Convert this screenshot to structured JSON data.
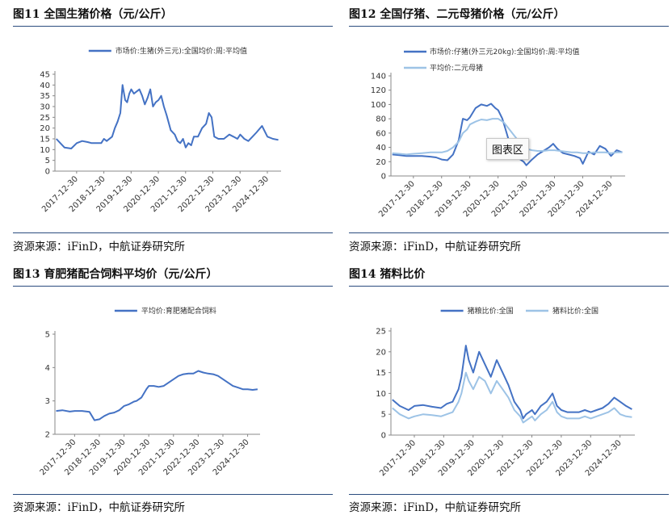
{
  "source_text": "资源来源：iFinD，中航证券研究所",
  "tooltip_text": "图表区",
  "charts": [
    {
      "type": "line",
      "title": "图11  全国生猪价格（元/公斤）",
      "ylim": [
        0,
        45
      ],
      "yticks": [
        0,
        5,
        10,
        15,
        20,
        25,
        30,
        35,
        40,
        45
      ],
      "xticks": [
        "2017-12-30",
        "2018-12-30",
        "2019-12-30",
        "2020-12-30",
        "2021-12-30",
        "2022-12-30",
        "2023-12-30",
        "2024-12-30"
      ],
      "xrange": [
        2017.2,
        2025.5
      ],
      "legend_position": "top-center",
      "series": [
        {
          "name": "市场价:生猪(外三元):全国均价:周:平均值",
          "color": "#4472c4",
          "x": [
            2017.25,
            2017.4,
            2017.55,
            2017.8,
            2018.0,
            2018.2,
            2018.4,
            2018.55,
            2018.7,
            2018.9,
            2019.0,
            2019.1,
            2019.3,
            2019.4,
            2019.5,
            2019.6,
            2019.68,
            2019.78,
            2019.85,
            2019.93,
            2020.0,
            2020.1,
            2020.2,
            2020.3,
            2020.4,
            2020.5,
            2020.6,
            2020.7,
            2020.8,
            2020.9,
            2021.0,
            2021.1,
            2021.2,
            2021.3,
            2021.45,
            2021.6,
            2021.7,
            2021.8,
            2021.9,
            2022.0,
            2022.1,
            2022.2,
            2022.3,
            2022.45,
            2022.6,
            2022.75,
            2022.85,
            2022.95,
            2023.05,
            2023.2,
            2023.4,
            2023.6,
            2023.75,
            2023.9,
            2024.0,
            2024.15,
            2024.3,
            2024.45,
            2024.6,
            2024.8,
            2025.0,
            2025.2,
            2025.4
          ],
          "y": [
            15,
            13,
            11,
            10.5,
            13,
            14,
            13.5,
            13,
            13,
            13,
            15,
            14,
            16,
            20,
            23,
            27,
            40,
            33,
            32,
            36,
            38,
            36,
            37,
            38,
            35,
            31,
            34,
            38,
            30,
            32,
            33,
            35,
            30,
            26,
            19,
            17,
            14,
            13,
            15,
            11,
            13,
            12,
            16,
            16,
            20,
            22,
            27,
            25,
            16,
            15,
            15,
            17,
            16,
            15,
            17,
            15,
            14,
            16,
            18,
            21,
            16,
            15,
            14.5
          ]
        }
      ]
    },
    {
      "type": "line",
      "title": "图12  全国仔猪、二元母猪价格（元/公斤）",
      "ylim": [
        0,
        140
      ],
      "yticks": [
        0,
        20,
        40,
        60,
        80,
        100,
        120,
        140
      ],
      "xticks": [
        "2017-12-30",
        "2018-12-30",
        "2019-12-30",
        "2020-12-30",
        "2021-12-30",
        "2022-12-30",
        "2023-12-30",
        "2024-12-30"
      ],
      "xrange": [
        2017.2,
        2025.5
      ],
      "legend_position": "top-left",
      "series": [
        {
          "name": "市场价:仔猪(外三元20kg):全国均价:周:平均值",
          "color": "#4472c4",
          "x": [
            2017.25,
            2017.5,
            2017.75,
            2018.0,
            2018.3,
            2018.6,
            2018.8,
            2019.0,
            2019.2,
            2019.4,
            2019.6,
            2019.75,
            2019.9,
            2020.0,
            2020.2,
            2020.4,
            2020.6,
            2020.75,
            2020.9,
            2021.0,
            2021.15,
            2021.3,
            2021.45,
            2021.6,
            2021.75,
            2021.9,
            2022.0,
            2022.2,
            2022.4,
            2022.6,
            2022.8,
            2022.95,
            2023.1,
            2023.3,
            2023.5,
            2023.7,
            2023.9,
            2024.0,
            2024.2,
            2024.4,
            2024.6,
            2024.8,
            2025.0,
            2025.2,
            2025.4
          ],
          "y": [
            30,
            29,
            28,
            28,
            28,
            27,
            26,
            23,
            22,
            30,
            50,
            80,
            78,
            82,
            95,
            100,
            98,
            101,
            95,
            92,
            80,
            60,
            40,
            28,
            24,
            20,
            15,
            23,
            30,
            35,
            40,
            45,
            38,
            32,
            30,
            28,
            25,
            17,
            34,
            30,
            42,
            38,
            28,
            36,
            33
          ]
        },
        {
          "name": "平均价:二元母猪",
          "color": "#9dc3e6",
          "x": [
            2017.25,
            2017.5,
            2017.75,
            2018.0,
            2018.3,
            2018.6,
            2018.8,
            2019.0,
            2019.2,
            2019.4,
            2019.6,
            2019.75,
            2019.9,
            2020.0,
            2020.2,
            2020.4,
            2020.6,
            2020.8,
            2021.0,
            2021.2,
            2021.4,
            2021.6,
            2021.8,
            2022.0,
            2022.2,
            2022.4,
            2022.6,
            2022.8,
            2023.0,
            2023.2,
            2023.4,
            2023.6,
            2023.8,
            2024.0,
            2024.2,
            2024.4,
            2024.6,
            2024.8,
            2025.0,
            2025.2,
            2025.4
          ],
          "y": [
            32,
            31,
            30,
            31,
            32,
            33,
            33,
            33,
            35,
            40,
            48,
            60,
            65,
            72,
            76,
            79,
            78,
            80,
            80,
            75,
            65,
            55,
            45,
            38,
            36,
            35,
            35,
            36,
            36,
            35,
            34,
            33,
            33,
            32,
            32,
            33,
            33,
            33,
            32,
            33,
            33
          ]
        }
      ]
    },
    {
      "type": "line",
      "title": "图13  育肥猪配合饲料平均价（元/公斤）",
      "ylim": [
        2,
        5
      ],
      "yticks": [
        2,
        3,
        4,
        5
      ],
      "xticks": [
        "2017-12-30",
        "2018-12-30",
        "2019-12-30",
        "2020-12-30",
        "2021-12-30",
        "2022-12-30",
        "2023-12-30",
        "2024-12-30"
      ],
      "xrange": [
        2017.2,
        2025.5
      ],
      "legend_position": "top-center",
      "series": [
        {
          "name": "平均价:育肥猪配合饲料",
          "color": "#4472c4",
          "x": [
            2017.25,
            2017.5,
            2017.8,
            2018.0,
            2018.3,
            2018.6,
            2018.8,
            2019.0,
            2019.2,
            2019.4,
            2019.6,
            2019.8,
            2020.0,
            2020.2,
            2020.4,
            2020.5,
            2020.7,
            2020.9,
            2021.0,
            2021.2,
            2021.4,
            2021.6,
            2021.8,
            2022.0,
            2022.2,
            2022.4,
            2022.6,
            2022.8,
            2023.0,
            2023.2,
            2023.4,
            2023.6,
            2023.8,
            2024.0,
            2024.2,
            2024.4,
            2024.6,
            2024.8,
            2025.0,
            2025.2,
            2025.4
          ],
          "y": [
            2.7,
            2.72,
            2.68,
            2.7,
            2.7,
            2.67,
            2.42,
            2.45,
            2.55,
            2.62,
            2.65,
            2.72,
            2.85,
            2.9,
            2.98,
            3.0,
            3.1,
            3.35,
            3.45,
            3.45,
            3.42,
            3.45,
            3.55,
            3.65,
            3.75,
            3.8,
            3.82,
            3.82,
            3.9,
            3.85,
            3.82,
            3.8,
            3.75,
            3.65,
            3.55,
            3.45,
            3.4,
            3.35,
            3.35,
            3.33,
            3.35
          ]
        }
      ]
    },
    {
      "type": "line",
      "title": "图14  猪料比价",
      "ylim": [
        0,
        25
      ],
      "yticks": [
        0,
        5,
        10,
        15,
        20,
        25
      ],
      "xticks": [
        "2017-12-30",
        "2018-12-30",
        "2019-12-30",
        "2020-12-30",
        "2021-12-30",
        "2022-12-30",
        "2023-12-30",
        "2024-12-30"
      ],
      "xrange": [
        2017.2,
        2025.5
      ],
      "legend_position": "top-center",
      "series": [
        {
          "name": "猪粮比价:全国",
          "color": "#4472c4",
          "x": [
            2017.25,
            2017.5,
            2017.8,
            2018.0,
            2018.3,
            2018.6,
            2018.9,
            2019.1,
            2019.3,
            2019.5,
            2019.6,
            2019.75,
            2019.85,
            2020.0,
            2020.2,
            2020.4,
            2020.6,
            2020.8,
            2021.0,
            2021.2,
            2021.4,
            2021.6,
            2021.7,
            2021.8,
            2022.0,
            2022.1,
            2022.3,
            2022.5,
            2022.7,
            2022.85,
            2023.0,
            2023.2,
            2023.4,
            2023.6,
            2023.8,
            2024.0,
            2024.2,
            2024.4,
            2024.6,
            2024.8,
            2025.0,
            2025.2,
            2025.4
          ],
          "y": [
            8.5,
            7,
            6,
            7,
            7.2,
            6.8,
            6.5,
            7.5,
            8,
            11,
            14,
            21.5,
            18,
            15,
            20,
            17,
            14,
            18,
            15,
            12,
            8,
            6,
            4,
            5,
            6,
            5,
            7,
            8,
            10,
            7,
            6,
            5.5,
            5.5,
            5.5,
            6,
            5.5,
            6,
            6.5,
            7.5,
            9,
            8,
            7,
            6.2
          ]
        },
        {
          "name": "猪料比价:全国",
          "color": "#9dc3e6",
          "x": [
            2017.25,
            2017.5,
            2017.8,
            2018.0,
            2018.3,
            2018.6,
            2018.9,
            2019.1,
            2019.3,
            2019.5,
            2019.6,
            2019.75,
            2019.85,
            2020.0,
            2020.2,
            2020.4,
            2020.6,
            2020.8,
            2021.0,
            2021.2,
            2021.4,
            2021.6,
            2021.7,
            2021.8,
            2022.0,
            2022.1,
            2022.3,
            2022.5,
            2022.7,
            2022.85,
            2023.0,
            2023.2,
            2023.4,
            2023.6,
            2023.8,
            2024.0,
            2024.2,
            2024.4,
            2024.6,
            2024.8,
            2025.0,
            2025.2,
            2025.4
          ],
          "y": [
            6.5,
            5,
            4,
            4.5,
            5,
            4.8,
            4.5,
            5,
            5.5,
            8,
            10,
            15,
            13,
            11,
            14,
            13,
            10,
            13,
            11,
            9,
            6,
            4.5,
            3,
            3.5,
            4.5,
            3.5,
            5,
            6,
            8,
            5.5,
            4.5,
            4,
            4,
            4,
            4.5,
            4,
            4.5,
            5,
            5.5,
            6.5,
            5,
            4.5,
            4.3
          ]
        }
      ]
    }
  ]
}
